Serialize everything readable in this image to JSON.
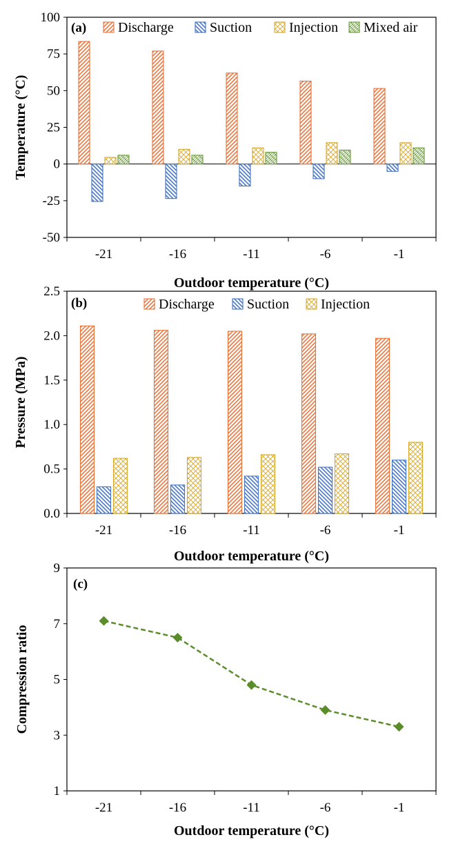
{
  "chart_data": [
    {
      "type": "bar",
      "panel_label": "(a)",
      "categories": [
        "-21",
        "-16",
        "-11",
        "-6",
        "-1"
      ],
      "series": [
        {
          "name": "Discharge",
          "values": [
            83.5,
            77,
            62,
            56.5,
            51.5
          ]
        },
        {
          "name": "Suction",
          "values": [
            -25.5,
            -23.5,
            -15,
            -10,
            -5
          ]
        },
        {
          "name": "Injection",
          "values": [
            4.5,
            10,
            11,
            14.5,
            14.5
          ]
        },
        {
          "name": "Mixed air",
          "values": [
            6,
            6,
            8,
            9.5,
            11
          ]
        }
      ],
      "xlabel": "Outdoor temperature (°C)",
      "ylabel": "Temperature (°C)",
      "ylim": [
        -50,
        100
      ],
      "yticks": [
        "-50",
        "-25",
        "0",
        "25",
        "50",
        "75",
        "100"
      ],
      "legend": "top"
    },
    {
      "type": "bar",
      "panel_label": "(b)",
      "categories": [
        "-21",
        "-16",
        "-11",
        "-6",
        "-1"
      ],
      "series": [
        {
          "name": "Discharge",
          "values": [
            2.11,
            2.06,
            2.05,
            2.02,
            1.97
          ]
        },
        {
          "name": "Suction",
          "values": [
            0.3,
            0.32,
            0.42,
            0.52,
            0.6
          ]
        },
        {
          "name": "Injection",
          "values": [
            0.62,
            0.63,
            0.66,
            0.67,
            0.8
          ]
        }
      ],
      "xlabel": "Outdoor temperature (°C)",
      "ylabel": "Pressure (MPa)",
      "ylim": [
        0,
        2.5
      ],
      "yticks": [
        "0.0",
        "0.5",
        "1.0",
        "1.5",
        "2.0",
        "2.5"
      ],
      "legend": "top"
    },
    {
      "type": "line",
      "panel_label": "(c)",
      "categories": [
        "-21",
        "-16",
        "-11",
        "-6",
        "-1"
      ],
      "series": [
        {
          "values": [
            7.1,
            6.5,
            4.8,
            3.9,
            3.3
          ]
        }
      ],
      "xlabel": "Outdoor temperature (°C)",
      "ylabel": "Compression ratio",
      "ylim": [
        1,
        9
      ],
      "yticks": [
        "1",
        "3",
        "5",
        "7",
        "9"
      ]
    }
  ],
  "colors": {
    "discharge": "#e8733a",
    "suction": "#4472c4",
    "injection": "#d4a62a",
    "mixed_air": "#6a9a3a",
    "line": "#5b8c2a"
  }
}
